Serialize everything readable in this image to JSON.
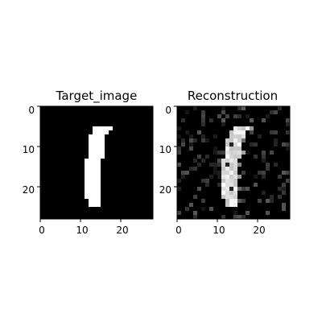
{
  "figure": {
    "panels": [
      {
        "title": "Target_image",
        "kind": "binary",
        "x_ticks": [
          "0",
          "10",
          "20"
        ],
        "y_ticks": [
          "0",
          "10",
          "20"
        ]
      },
      {
        "title": "Reconstruction",
        "kind": "noisy",
        "x_ticks": [
          "0",
          "10",
          "20"
        ],
        "y_ticks": [
          "0",
          "10",
          "20"
        ]
      }
    ]
  },
  "colors": {
    "background": "#000000",
    "foreground": "#ffffff",
    "tick": "#000000"
  }
}
